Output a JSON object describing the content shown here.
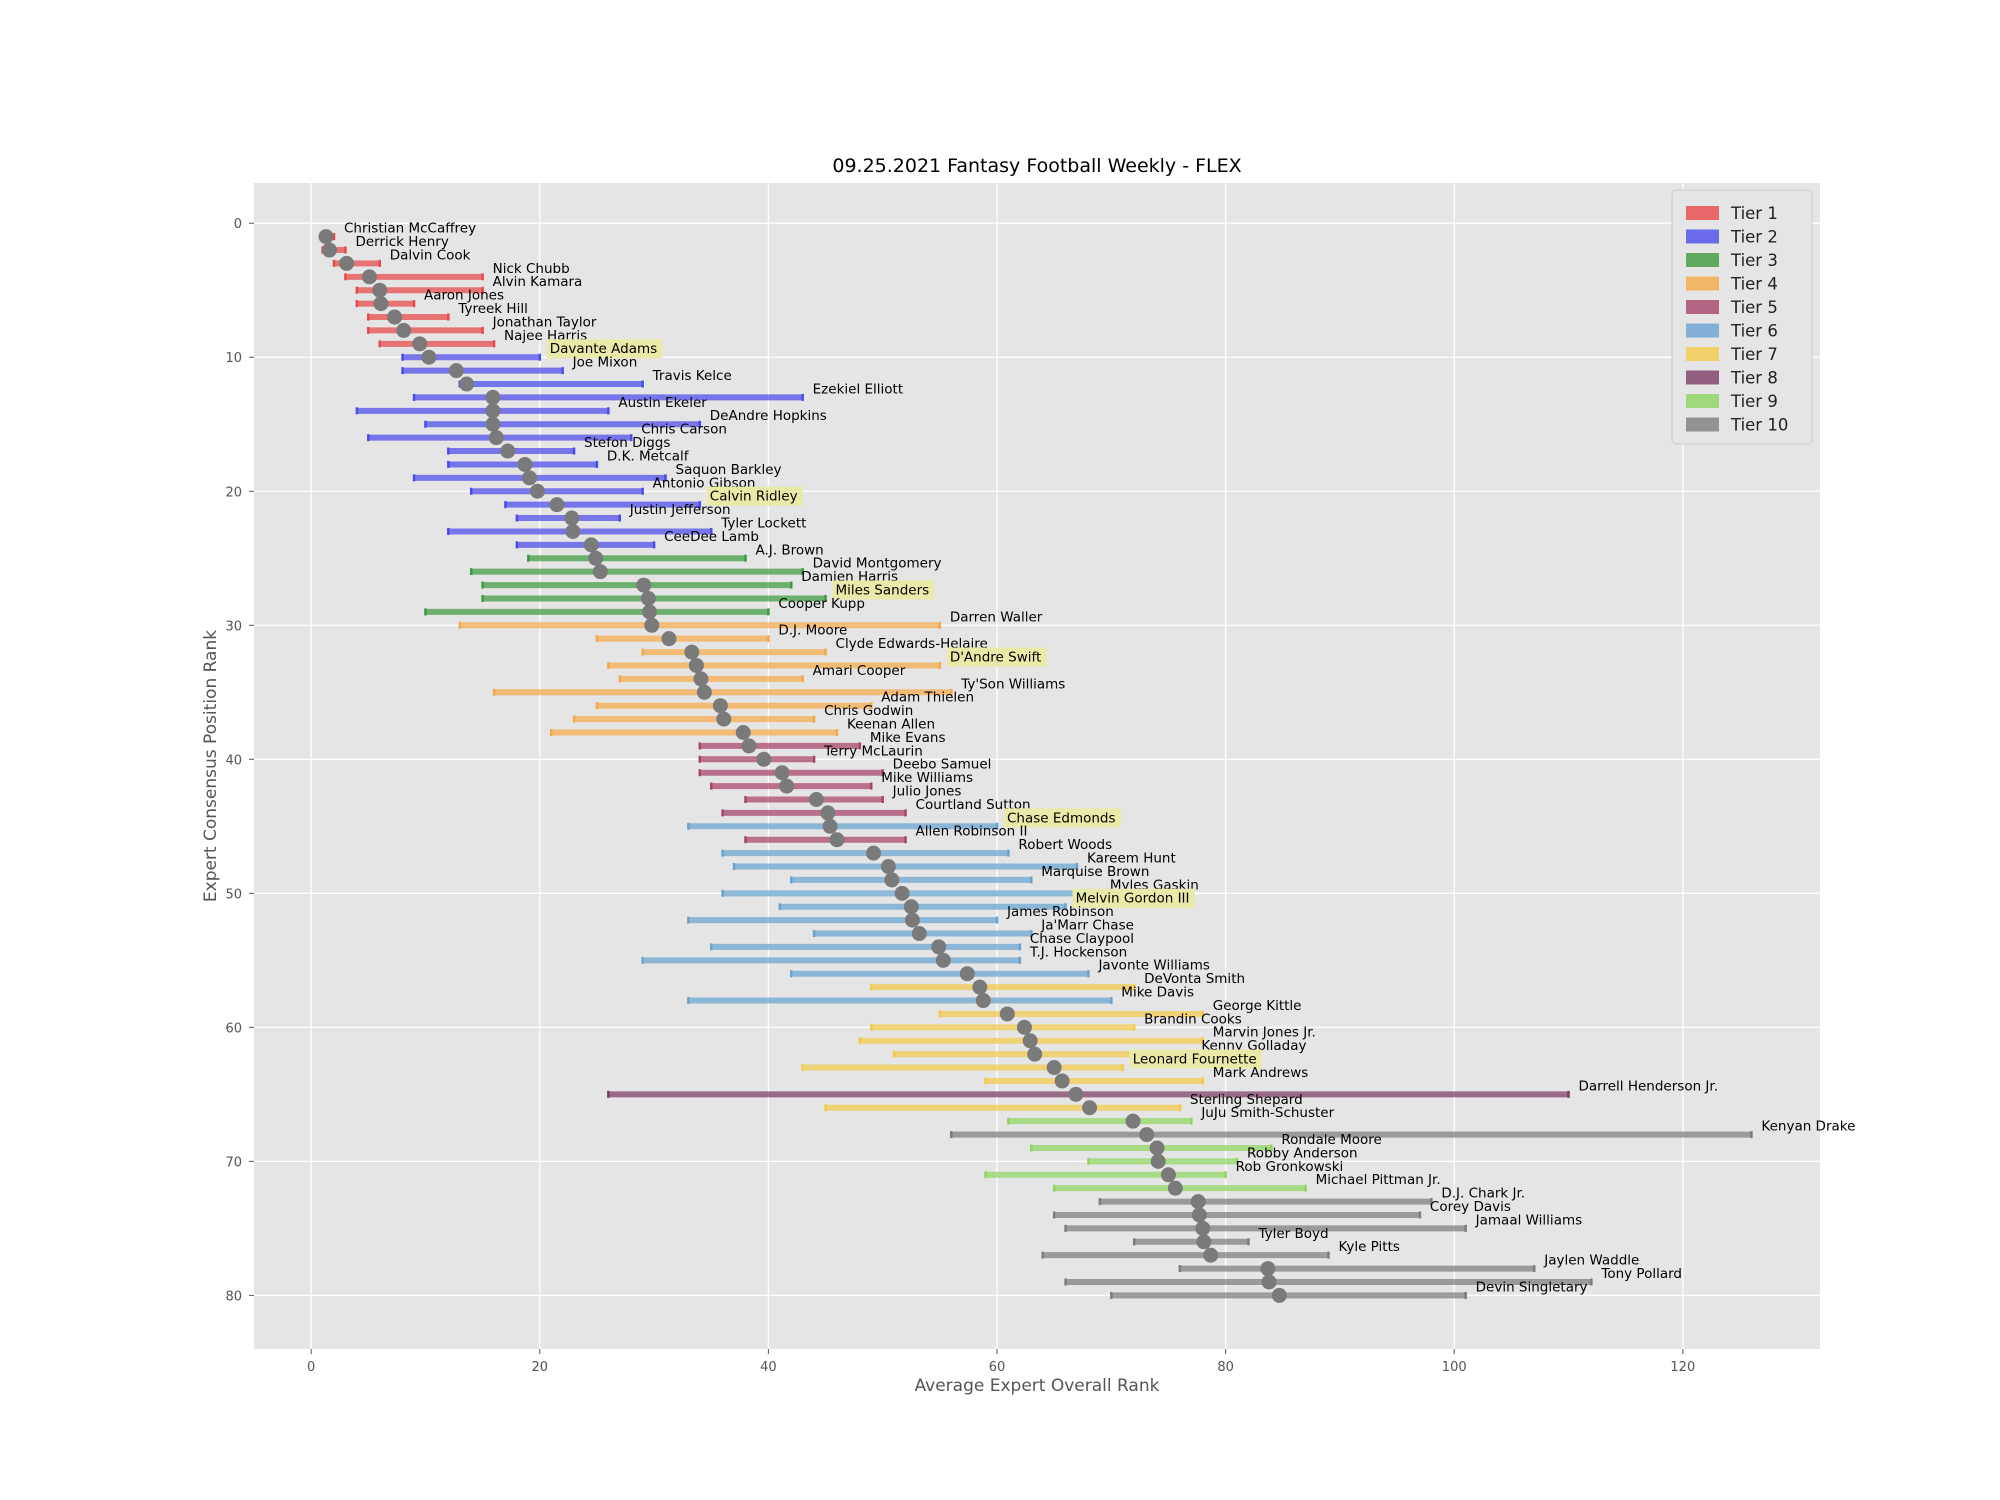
{
  "chart_data": {
    "type": "errorbar-scatter",
    "title": "09.25.2021 Fantasy Football Weekly - FLEX",
    "xlabel": "Average Expert Overall Rank",
    "ylabel": "Expert Consensus Position Rank",
    "xlim": [
      -5,
      132
    ],
    "ylim": [
      84,
      -3
    ],
    "xticks": [
      0,
      20,
      40,
      60,
      80,
      100,
      120
    ],
    "yticks": [
      0,
      10,
      20,
      30,
      40,
      50,
      60,
      70,
      80
    ],
    "grid": true,
    "legend_position": "top-right",
    "tiers": [
      {
        "name": "Tier 1",
        "color": "#e8484a"
      },
      {
        "name": "Tier 2",
        "color": "#4b4bec"
      },
      {
        "name": "Tier 3",
        "color": "#3d9a40"
      },
      {
        "name": "Tier 4",
        "color": "#f5aa4a"
      },
      {
        "name": "Tier 5",
        "color": "#a8436a"
      },
      {
        "name": "Tier 6",
        "color": "#6aa3cf"
      },
      {
        "name": "Tier 7",
        "color": "#f3cb4a"
      },
      {
        "name": "Tier 8",
        "color": "#7d3c65"
      },
      {
        "name": "Tier 9",
        "color": "#8fd660"
      },
      {
        "name": "Tier 10",
        "color": "#7d7d7d"
      }
    ],
    "points": [
      {
        "name": "Christian McCaffrey",
        "tier": 1,
        "rank": 1,
        "avg": 1.3,
        "min": 1,
        "max": 2,
        "hl": false
      },
      {
        "name": "Derrick Henry",
        "tier": 1,
        "rank": 2,
        "avg": 1.6,
        "min": 1,
        "max": 3,
        "hl": false
      },
      {
        "name": "Dalvin Cook",
        "tier": 1,
        "rank": 3,
        "avg": 3.1,
        "min": 2,
        "max": 6,
        "hl": false
      },
      {
        "name": "Nick Chubb",
        "tier": 1,
        "rank": 4,
        "avg": 5.1,
        "min": 3,
        "max": 15,
        "hl": false
      },
      {
        "name": "Alvin Kamara",
        "tier": 1,
        "rank": 5,
        "avg": 6.0,
        "min": 4,
        "max": 15,
        "hl": false
      },
      {
        "name": "Aaron Jones",
        "tier": 1,
        "rank": 6,
        "avg": 6.1,
        "min": 4,
        "max": 9,
        "hl": false
      },
      {
        "name": "Tyreek Hill",
        "tier": 1,
        "rank": 7,
        "avg": 7.3,
        "min": 5,
        "max": 12,
        "hl": false
      },
      {
        "name": "Jonathan Taylor",
        "tier": 1,
        "rank": 8,
        "avg": 8.1,
        "min": 5,
        "max": 15,
        "hl": false
      },
      {
        "name": "Najee Harris",
        "tier": 1,
        "rank": 9,
        "avg": 9.5,
        "min": 6,
        "max": 16,
        "hl": false
      },
      {
        "name": "Davante Adams",
        "tier": 2,
        "rank": 10,
        "avg": 10.3,
        "min": 8,
        "max": 20,
        "hl": true
      },
      {
        "name": "Joe Mixon",
        "tier": 2,
        "rank": 11,
        "avg": 12.7,
        "min": 8,
        "max": 22,
        "hl": false
      },
      {
        "name": "Travis Kelce",
        "tier": 2,
        "rank": 12,
        "avg": 13.6,
        "min": 13,
        "max": 29,
        "hl": false
      },
      {
        "name": "Ezekiel Elliott",
        "tier": 2,
        "rank": 13,
        "avg": 15.9,
        "min": 9,
        "max": 43,
        "hl": false
      },
      {
        "name": "Austin Ekeler",
        "tier": 2,
        "rank": 14,
        "avg": 15.9,
        "min": 4,
        "max": 26,
        "hl": false
      },
      {
        "name": "DeAndre Hopkins",
        "tier": 2,
        "rank": 15,
        "avg": 15.9,
        "min": 10,
        "max": 34,
        "hl": false
      },
      {
        "name": "Chris Carson",
        "tier": 2,
        "rank": 16,
        "avg": 16.2,
        "min": 5,
        "max": 28,
        "hl": false
      },
      {
        "name": "Stefon Diggs",
        "tier": 2,
        "rank": 17,
        "avg": 17.2,
        "min": 12,
        "max": 23,
        "hl": false
      },
      {
        "name": "D.K. Metcalf",
        "tier": 2,
        "rank": 18,
        "avg": 18.7,
        "min": 12,
        "max": 25,
        "hl": false
      },
      {
        "name": "Saquon Barkley",
        "tier": 2,
        "rank": 19,
        "avg": 19.1,
        "min": 9,
        "max": 31,
        "hl": false
      },
      {
        "name": "Antonio Gibson",
        "tier": 2,
        "rank": 20,
        "avg": 19.8,
        "min": 14,
        "max": 29,
        "hl": false
      },
      {
        "name": "Calvin Ridley",
        "tier": 2,
        "rank": 21,
        "avg": 21.5,
        "min": 17,
        "max": 34,
        "hl": true
      },
      {
        "name": "Justin Jefferson",
        "tier": 2,
        "rank": 22,
        "avg": 22.8,
        "min": 18,
        "max": 27,
        "hl": false
      },
      {
        "name": "Tyler Lockett",
        "tier": 2,
        "rank": 23,
        "avg": 22.9,
        "min": 12,
        "max": 35,
        "hl": false
      },
      {
        "name": "CeeDee Lamb",
        "tier": 2,
        "rank": 24,
        "avg": 24.5,
        "min": 18,
        "max": 30,
        "hl": false
      },
      {
        "name": "A.J. Brown",
        "tier": 3,
        "rank": 25,
        "avg": 24.9,
        "min": 19,
        "max": 38,
        "hl": false
      },
      {
        "name": "David Montgomery",
        "tier": 3,
        "rank": 26,
        "avg": 25.3,
        "min": 14,
        "max": 43,
        "hl": false
      },
      {
        "name": "Damien Harris",
        "tier": 3,
        "rank": 27,
        "avg": 29.1,
        "min": 15,
        "max": 42,
        "hl": false
      },
      {
        "name": "Miles Sanders",
        "tier": 3,
        "rank": 28,
        "avg": 29.5,
        "min": 15,
        "max": 45,
        "hl": true
      },
      {
        "name": "Cooper Kupp",
        "tier": 3,
        "rank": 29,
        "avg": 29.6,
        "min": 10,
        "max": 40,
        "hl": false
      },
      {
        "name": "Darren Waller",
        "tier": 4,
        "rank": 30,
        "avg": 29.8,
        "min": 13,
        "max": 55,
        "hl": false
      },
      {
        "name": "D.J. Moore",
        "tier": 4,
        "rank": 31,
        "avg": 31.3,
        "min": 25,
        "max": 40,
        "hl": false
      },
      {
        "name": "Clyde Edwards-Helaire",
        "tier": 4,
        "rank": 32,
        "avg": 33.3,
        "min": 29,
        "max": 45,
        "hl": false
      },
      {
        "name": "D'Andre Swift",
        "tier": 4,
        "rank": 33,
        "avg": 33.7,
        "min": 26,
        "max": 55,
        "hl": true
      },
      {
        "name": "Amari Cooper",
        "tier": 4,
        "rank": 34,
        "avg": 34.1,
        "min": 27,
        "max": 43,
        "hl": false
      },
      {
        "name": "Ty'Son Williams",
        "tier": 4,
        "rank": 35,
        "avg": 34.4,
        "min": 16,
        "max": 56,
        "hl": false
      },
      {
        "name": "Adam Thielen",
        "tier": 4,
        "rank": 36,
        "avg": 35.8,
        "min": 25,
        "max": 49,
        "hl": false
      },
      {
        "name": "Chris Godwin",
        "tier": 4,
        "rank": 37,
        "avg": 36.1,
        "min": 23,
        "max": 44,
        "hl": false
      },
      {
        "name": "Keenan Allen",
        "tier": 4,
        "rank": 38,
        "avg": 37.8,
        "min": 21,
        "max": 46,
        "hl": false
      },
      {
        "name": "Mike Evans",
        "tier": 5,
        "rank": 39,
        "avg": 38.3,
        "min": 34,
        "max": 48,
        "hl": false
      },
      {
        "name": "Terry McLaurin",
        "tier": 5,
        "rank": 40,
        "avg": 39.6,
        "min": 34,
        "max": 44,
        "hl": false
      },
      {
        "name": "Deebo Samuel",
        "tier": 5,
        "rank": 41,
        "avg": 41.2,
        "min": 34,
        "max": 50,
        "hl": false
      },
      {
        "name": "Mike Williams",
        "tier": 5,
        "rank": 42,
        "avg": 41.6,
        "min": 35,
        "max": 49,
        "hl": false
      },
      {
        "name": "Julio Jones",
        "tier": 5,
        "rank": 43,
        "avg": 44.2,
        "min": 38,
        "max": 50,
        "hl": false
      },
      {
        "name": "Courtland Sutton",
        "tier": 5,
        "rank": 44,
        "avg": 45.2,
        "min": 36,
        "max": 52,
        "hl": false
      },
      {
        "name": "Chase Edmonds",
        "tier": 6,
        "rank": 45,
        "avg": 45.4,
        "min": 33,
        "max": 60,
        "hl": true
      },
      {
        "name": "Allen Robinson II",
        "tier": 5,
        "rank": 46,
        "avg": 46.0,
        "min": 38,
        "max": 52,
        "hl": false
      },
      {
        "name": "Robert Woods",
        "tier": 6,
        "rank": 47,
        "avg": 49.2,
        "min": 36,
        "max": 61,
        "hl": false
      },
      {
        "name": "Kareem Hunt",
        "tier": 6,
        "rank": 48,
        "avg": 50.5,
        "min": 37,
        "max": 67,
        "hl": false
      },
      {
        "name": "Marquise Brown",
        "tier": 6,
        "rank": 49,
        "avg": 50.8,
        "min": 42,
        "max": 63,
        "hl": false
      },
      {
        "name": "Myles Gaskin",
        "tier": 6,
        "rank": 50,
        "avg": 51.7,
        "min": 36,
        "max": 69,
        "hl": false
      },
      {
        "name": "Melvin Gordon III",
        "tier": 6,
        "rank": 51,
        "avg": 52.5,
        "min": 41,
        "max": 66,
        "hl": true
      },
      {
        "name": "James Robinson",
        "tier": 6,
        "rank": 52,
        "avg": 52.6,
        "min": 33,
        "max": 60,
        "hl": false
      },
      {
        "name": "Ja'Marr Chase",
        "tier": 6,
        "rank": 53,
        "avg": 53.2,
        "min": 44,
        "max": 63,
        "hl": false
      },
      {
        "name": "Chase Claypool",
        "tier": 6,
        "rank": 54,
        "avg": 54.9,
        "min": 35,
        "max": 62,
        "hl": false
      },
      {
        "name": "T.J. Hockenson",
        "tier": 6,
        "rank": 55,
        "avg": 55.3,
        "min": 29,
        "max": 62,
        "hl": false
      },
      {
        "name": "Javonte Williams",
        "tier": 6,
        "rank": 56,
        "avg": 57.4,
        "min": 42,
        "max": 68,
        "hl": false
      },
      {
        "name": "DeVonta Smith",
        "tier": 7,
        "rank": 57,
        "avg": 58.5,
        "min": 49,
        "max": 72,
        "hl": false
      },
      {
        "name": "Mike Davis",
        "tier": 6,
        "rank": 58,
        "avg": 58.8,
        "min": 33,
        "max": 70,
        "hl": false
      },
      {
        "name": "George Kittle",
        "tier": 7,
        "rank": 59,
        "avg": 60.9,
        "min": 55,
        "max": 78,
        "hl": false
      },
      {
        "name": "Brandin Cooks",
        "tier": 7,
        "rank": 60,
        "avg": 62.4,
        "min": 49,
        "max": 72,
        "hl": false
      },
      {
        "name": "Marvin Jones Jr.",
        "tier": 7,
        "rank": 61,
        "avg": 62.9,
        "min": 48,
        "max": 78,
        "hl": false
      },
      {
        "name": "Kenny Golladay",
        "tier": 7,
        "rank": 62,
        "avg": 63.3,
        "min": 51,
        "max": 77,
        "hl": false
      },
      {
        "name": "Leonard Fournette",
        "tier": 7,
        "rank": 63,
        "avg": 65.0,
        "min": 43,
        "max": 71,
        "hl": true
      },
      {
        "name": "Mark Andrews",
        "tier": 7,
        "rank": 64,
        "avg": 65.7,
        "min": 59,
        "max": 78,
        "hl": false
      },
      {
        "name": "Darrell Henderson Jr.",
        "tier": 8,
        "rank": 65,
        "avg": 66.9,
        "min": 26,
        "max": 110,
        "hl": false
      },
      {
        "name": "Sterling Shepard",
        "tier": 7,
        "rank": 66,
        "avg": 68.1,
        "min": 45,
        "max": 76,
        "hl": false
      },
      {
        "name": "JuJu Smith-Schuster",
        "tier": 9,
        "rank": 67,
        "avg": 71.9,
        "min": 61,
        "max": 77,
        "hl": false
      },
      {
        "name": "Kenyan Drake",
        "tier": 10,
        "rank": 68,
        "avg": 73.1,
        "min": 56,
        "max": 126,
        "hl": false
      },
      {
        "name": "Rondale Moore",
        "tier": 9,
        "rank": 69,
        "avg": 74.0,
        "min": 63,
        "max": 84,
        "hl": false
      },
      {
        "name": "Robby Anderson",
        "tier": 9,
        "rank": 70,
        "avg": 74.1,
        "min": 68,
        "max": 81,
        "hl": false
      },
      {
        "name": "Rob Gronkowski",
        "tier": 9,
        "rank": 71,
        "avg": 75.0,
        "min": 59,
        "max": 80,
        "hl": false
      },
      {
        "name": "Michael Pittman Jr.",
        "tier": 9,
        "rank": 72,
        "avg": 75.6,
        "min": 65,
        "max": 87,
        "hl": false
      },
      {
        "name": "D.J. Chark Jr.",
        "tier": 10,
        "rank": 73,
        "avg": 77.6,
        "min": 69,
        "max": 98,
        "hl": false
      },
      {
        "name": "Corey Davis",
        "tier": 10,
        "rank": 74,
        "avg": 77.7,
        "min": 65,
        "max": 97,
        "hl": false
      },
      {
        "name": "Jamaal Williams",
        "tier": 10,
        "rank": 75,
        "avg": 78.0,
        "min": 66,
        "max": 101,
        "hl": false
      },
      {
        "name": "Tyler Boyd",
        "tier": 10,
        "rank": 76,
        "avg": 78.1,
        "min": 72,
        "max": 82,
        "hl": false
      },
      {
        "name": "Kyle Pitts",
        "tier": 10,
        "rank": 77,
        "avg": 78.7,
        "min": 64,
        "max": 89,
        "hl": false
      },
      {
        "name": "Jaylen Waddle",
        "tier": 10,
        "rank": 78,
        "avg": 83.7,
        "min": 76,
        "max": 107,
        "hl": false
      },
      {
        "name": "Tony Pollard",
        "tier": 10,
        "rank": 79,
        "avg": 83.8,
        "min": 66,
        "max": 112,
        "hl": false
      },
      {
        "name": "Devin Singletary",
        "tier": 10,
        "rank": 80,
        "avg": 84.7,
        "min": 70,
        "max": 101,
        "hl": false
      }
    ]
  }
}
